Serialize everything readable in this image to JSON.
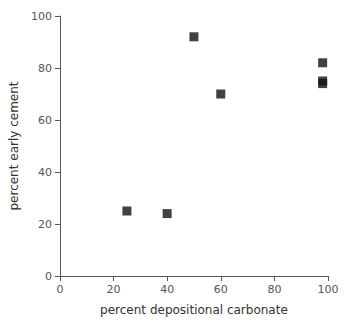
{
  "chart_data": {
    "type": "scatter",
    "x": [
      25,
      40,
      50,
      60,
      98,
      98,
      98
    ],
    "values": [
      25,
      24,
      92,
      70,
      82,
      75,
      74
    ],
    "xlabel": "percent depositional carbonate",
    "ylabel": "percent early cement",
    "xlim": [
      0,
      100
    ],
    "ylim": [
      0,
      100
    ],
    "xticks": [
      0,
      20,
      40,
      60,
      80,
      100
    ],
    "yticks": [
      0,
      20,
      40,
      60,
      80,
      100
    ],
    "color": "#111111",
    "marker": "square",
    "grid": false
  }
}
